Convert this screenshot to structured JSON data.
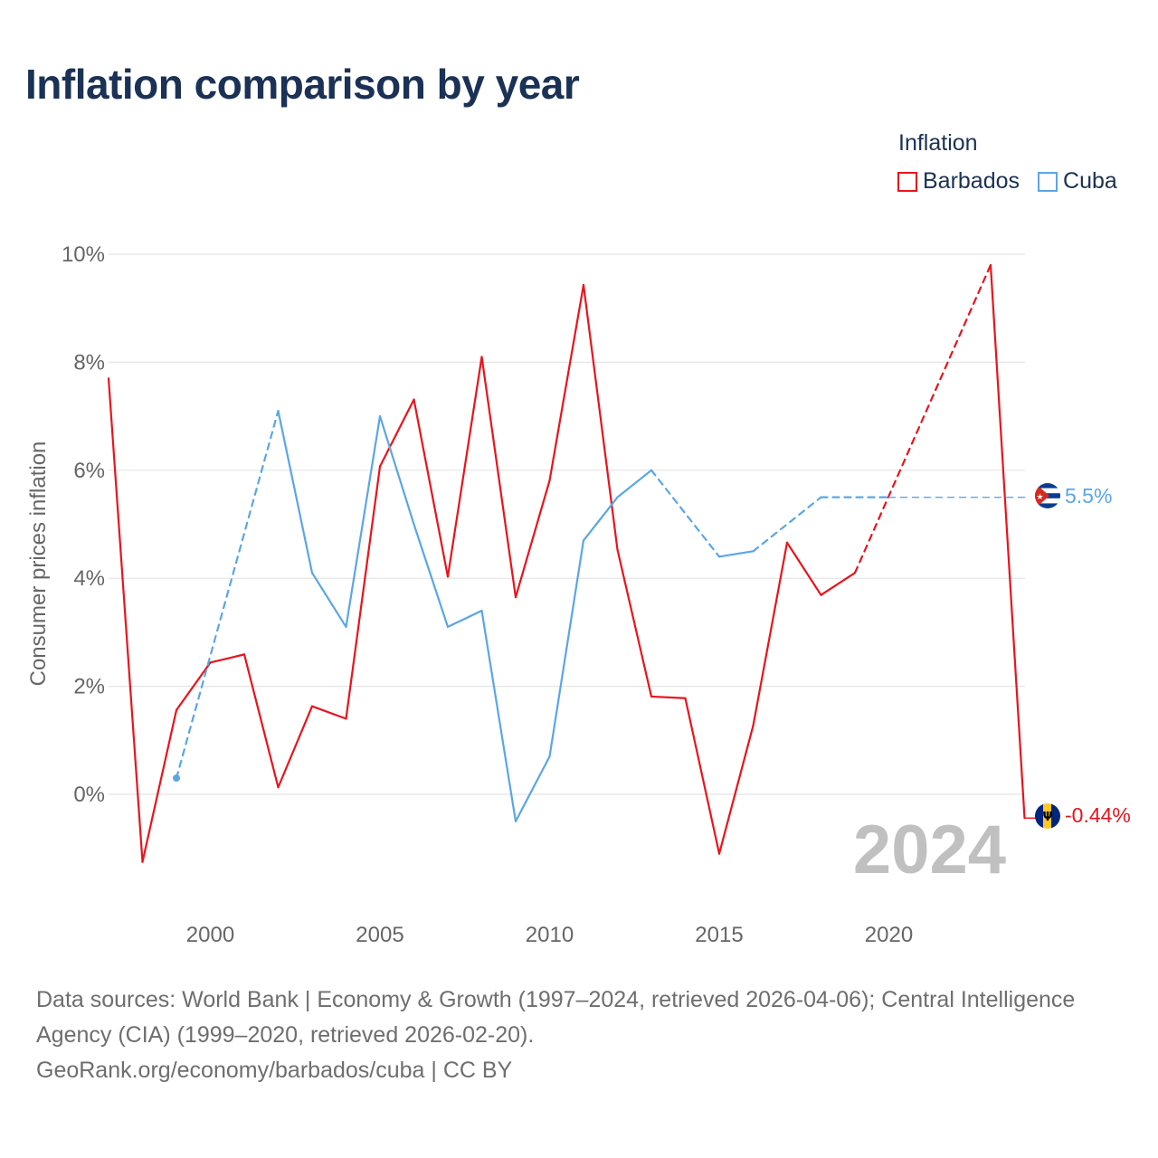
{
  "title": "Inflation comparison by year",
  "legend": {
    "title": "Inflation",
    "items": [
      {
        "label": "Barbados",
        "color": "#e8141c"
      },
      {
        "label": "Cuba",
        "color": "#5aa6e6"
      }
    ]
  },
  "footer": {
    "line1": "Data sources: World Bank | Economy & Growth (1997–2024, retrieved 2026-04-06); Central Intelligence",
    "line2": "Agency (CIA) (1999–2020, retrieved 2026-02-20).",
    "line3": "GeoRank.org/economy/barbados/cuba | CC BY"
  },
  "chart_data": {
    "type": "line",
    "title": "Inflation comparison by year",
    "ylabel": "Consumer prices inflation",
    "xlabel": "",
    "xlim": [
      1996.9,
      2024
    ],
    "ylim": [
      -2.1,
      10
    ],
    "x_ticks": [
      2000,
      2005,
      2010,
      2015,
      2020
    ],
    "x_tick_labels": [
      "2000",
      "2005",
      "2010",
      "2015",
      "2020"
    ],
    "y_ticks": [
      0,
      2,
      4,
      6,
      8,
      10
    ],
    "y_tick_labels": [
      "0%",
      "2%",
      "4%",
      "6%",
      "8%",
      "10%"
    ],
    "grid": true,
    "current_year_label": "2024",
    "series": [
      {
        "name": "Barbados",
        "color": "#e8141c",
        "end_label": "-0.44%",
        "flag": "barbados-flag",
        "points": [
          [
            1997,
            7.7
          ],
          [
            1998,
            -1.25
          ],
          [
            1999,
            1.56
          ],
          [
            2000,
            2.44
          ],
          [
            2001,
            2.59
          ],
          [
            2002,
            0.13
          ],
          [
            2003,
            1.63
          ],
          [
            2004,
            1.4
          ],
          [
            2005,
            6.07
          ],
          [
            2006,
            7.31
          ],
          [
            2007,
            4.03
          ],
          [
            2008,
            8.1
          ],
          [
            2009,
            3.65
          ],
          [
            2010,
            5.81
          ],
          [
            2011,
            9.43
          ],
          [
            2012,
            4.53
          ],
          [
            2013,
            1.81
          ],
          [
            2014,
            1.78
          ],
          [
            2015,
            -1.1
          ],
          [
            2016,
            1.27
          ],
          [
            2017,
            4.66
          ],
          [
            2018,
            3.69
          ],
          [
            2019,
            4.1
          ],
          [
            2023,
            9.8
          ],
          [
            2024,
            -0.44
          ]
        ]
      },
      {
        "name": "Cuba",
        "color": "#5aa6e6",
        "end_label": "5.5%",
        "flag": "cuba-flag",
        "points": [
          [
            1999,
            0.3
          ],
          [
            2002,
            7.1
          ],
          [
            2003,
            4.1
          ],
          [
            2004,
            3.1
          ],
          [
            2005,
            7.0
          ],
          [
            2006,
            5.0
          ],
          [
            2007,
            3.1
          ],
          [
            2008,
            3.4
          ],
          [
            2009,
            -0.5
          ],
          [
            2010,
            0.7
          ],
          [
            2011,
            4.7
          ],
          [
            2012,
            5.5
          ],
          [
            2013,
            6.0
          ],
          [
            2015,
            4.4
          ],
          [
            2016,
            4.5
          ],
          [
            2018,
            5.5
          ],
          [
            2020,
            5.5
          ],
          [
            2024,
            5.5
          ]
        ]
      }
    ]
  }
}
